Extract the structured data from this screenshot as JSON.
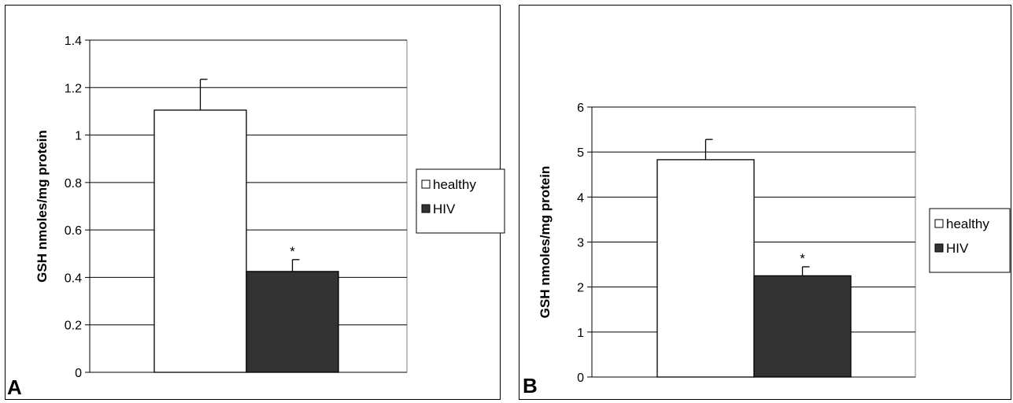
{
  "chart_data": [
    {
      "type": "bar",
      "panel_label": "A",
      "ylabel": "GSH nmoles/mg protein",
      "ylim": [
        0,
        1.4
      ],
      "yticks": [
        "0",
        "0.2",
        "0.4",
        "0.6",
        "0.8",
        "1",
        "1.2",
        "1.4"
      ],
      "ytick_values": [
        0,
        0.2,
        0.4,
        0.6,
        0.8,
        1.0,
        1.2,
        1.4
      ],
      "grid": true,
      "legend_position": "right",
      "series": [
        {
          "name": "healthy",
          "values": [
            1.105
          ],
          "error": [
            0.13
          ],
          "color": "#ffffff"
        },
        {
          "name": "HIV",
          "values": [
            0.425
          ],
          "error": [
            0.05
          ],
          "color": "#333333"
        }
      ],
      "annotations": [
        {
          "series": "HIV",
          "text": "*"
        }
      ]
    },
    {
      "type": "bar",
      "panel_label": "B",
      "ylabel": "GSH nmoles/mg protein",
      "ylim": [
        0,
        6
      ],
      "yticks": [
        "0",
        "1",
        "2",
        "3",
        "4",
        "5",
        "6"
      ],
      "ytick_values": [
        0,
        1,
        2,
        3,
        4,
        5,
        6
      ],
      "grid": true,
      "legend_position": "right",
      "series": [
        {
          "name": "healthy",
          "values": [
            4.83
          ],
          "error": [
            0.45
          ],
          "color": "#ffffff"
        },
        {
          "name": "HIV",
          "values": [
            2.25
          ],
          "error": [
            0.2
          ],
          "color": "#333333"
        }
      ],
      "annotations": [
        {
          "series": "HIV",
          "text": "*"
        }
      ]
    }
  ]
}
